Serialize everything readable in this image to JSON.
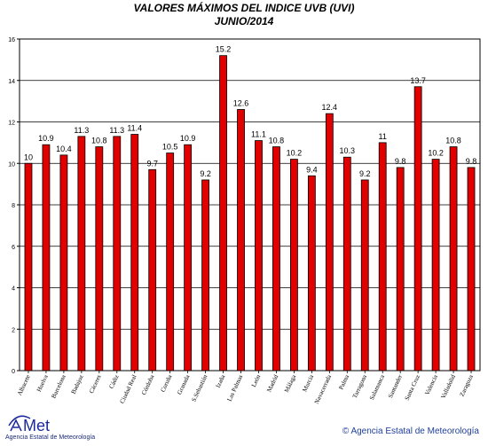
{
  "chart_data": {
    "type": "bar",
    "title": "VALORES MÁXIMOS DEL INDICE UVB (UVI)",
    "subtitle": "JUNIO/2014",
    "xlabel": "",
    "ylabel": "",
    "ylim": [
      0,
      16
    ],
    "yticks": [
      0,
      2,
      4,
      6,
      8,
      10,
      12,
      14,
      16
    ],
    "grid": true,
    "bar_color": "#e00000",
    "categories": [
      "Albacete",
      "Huelva",
      "Barcelona",
      "Badajoz",
      "Cáceres",
      "Cádiz",
      "Ciudad Real",
      "Córdoba",
      "Coruña",
      "Granada",
      "S.Sebastián",
      "Izaña",
      "Las Palmas",
      "León",
      "Madrid",
      "Málaga",
      "Murcia",
      "Navacerrada",
      "Palma",
      "Tarragona",
      "Salamanca",
      "Santander",
      "Santa Cruz",
      "Valencia",
      "Valladolid",
      "Zaragoza"
    ],
    "values": [
      10,
      10.9,
      10.4,
      11.3,
      10.8,
      11.3,
      11.4,
      9.7,
      10.5,
      10.9,
      9.2,
      15.2,
      12.6,
      11.1,
      10.8,
      10.2,
      9.4,
      12.4,
      10.3,
      9.2,
      11,
      9.8,
      13.7,
      10.2,
      10.8,
      9.8
    ],
    "labels": [
      "10",
      "10.9",
      "10.4",
      "11.3",
      "10.8",
      "11.3",
      "11.4",
      "9.7",
      "10.5",
      "10.9",
      "9.2",
      "15.2",
      "12.6",
      "11.1",
      "10.8",
      "10.2",
      "9.4",
      "12.4",
      "10.3",
      "9.2",
      "11",
      "9.8",
      "13.7",
      "10.2",
      "10.8",
      "9.8"
    ]
  },
  "footer": {
    "logo_text": "AEMet",
    "logo_caption": "Agencia Estatal de Meteorología",
    "copyright": "© Agencia Estatal de Meteorología"
  }
}
